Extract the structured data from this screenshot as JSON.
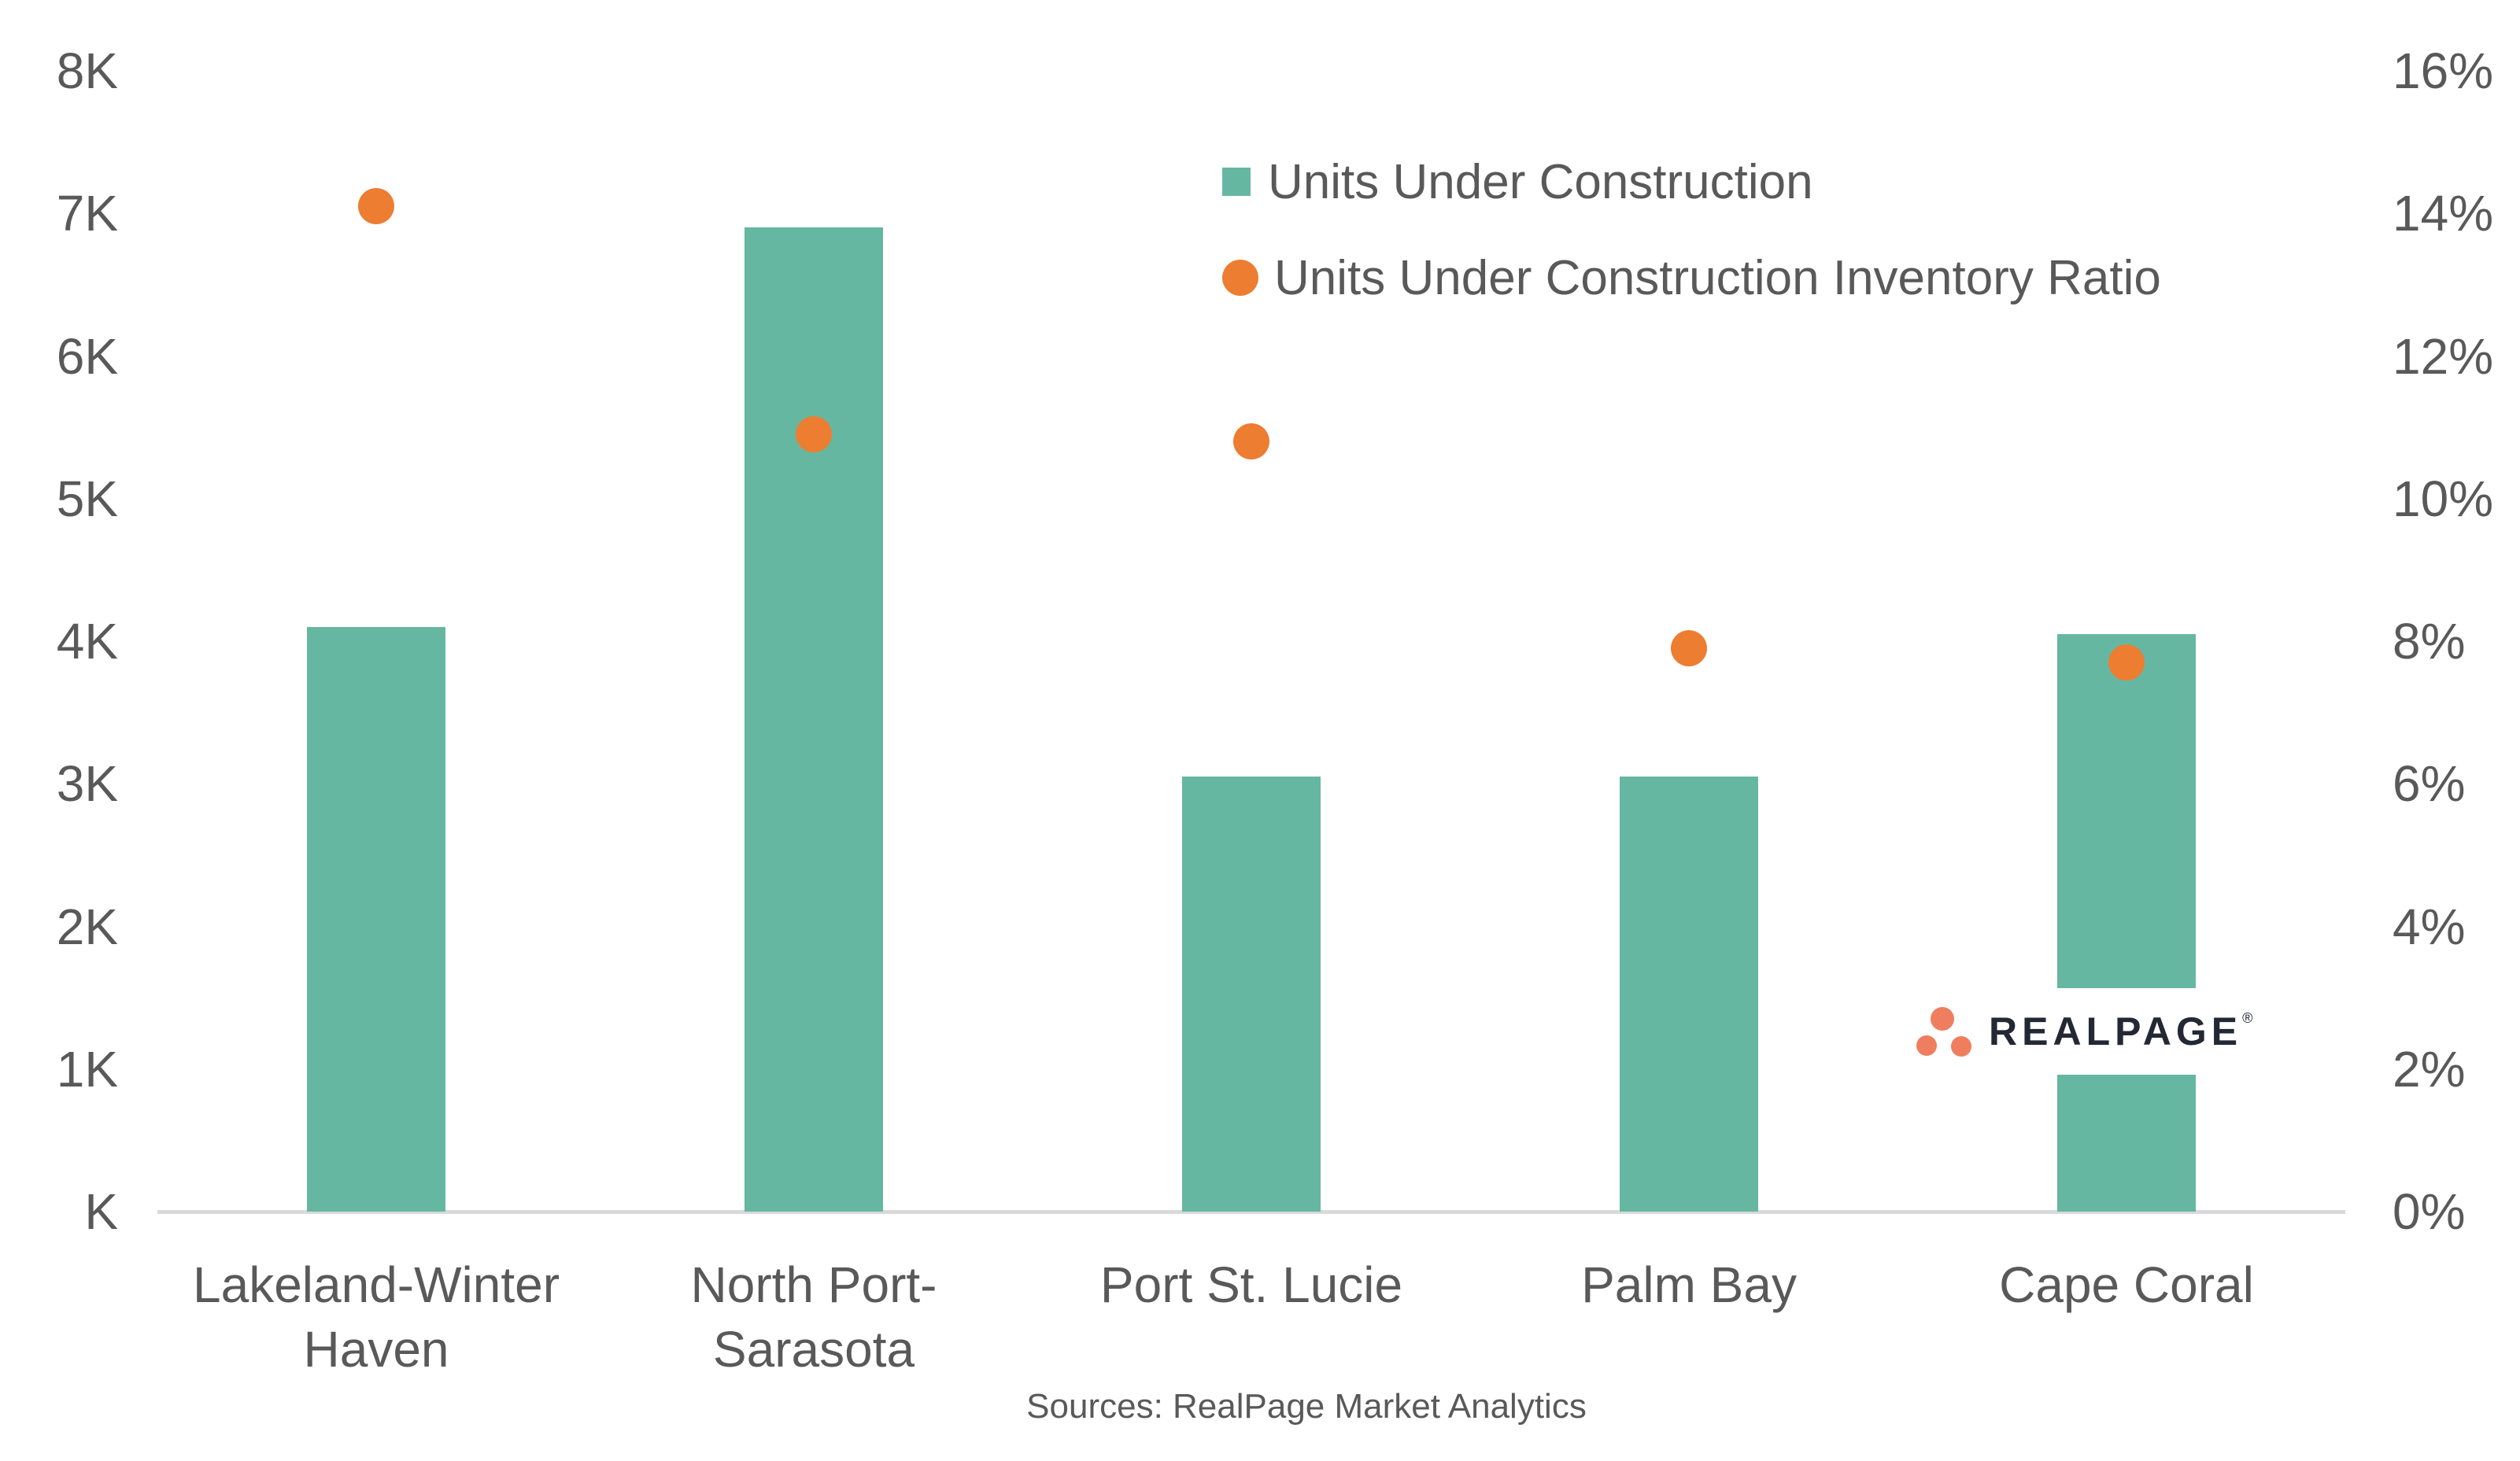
{
  "chart_data": {
    "type": "combo",
    "subtypes": [
      "bar",
      "scatter"
    ],
    "categories": [
      "Lakeland-Winter Haven",
      "North Port-Sarasota",
      "Port St. Lucie",
      "Palm Bay",
      "Cape Coral"
    ],
    "series": [
      {
        "name": "Units Under Construction",
        "type": "bar",
        "axis": "left",
        "values": [
          4100,
          6900,
          3050,
          3050,
          4050
        ]
      },
      {
        "name": "Units Under Construction Inventory Ratio",
        "type": "scatter",
        "axis": "right",
        "values": [
          14.1,
          10.9,
          10.8,
          7.9,
          7.7
        ]
      }
    ],
    "left_axis": {
      "min": 0,
      "max": 8000,
      "ticks": [
        {
          "label": "8K",
          "value": 8000
        },
        {
          "label": "7K",
          "value": 7000
        },
        {
          "label": "6K",
          "value": 6000
        },
        {
          "label": "5K",
          "value": 5000
        },
        {
          "label": "4K",
          "value": 4000
        },
        {
          "label": "3K",
          "value": 3000
        },
        {
          "label": "2K",
          "value": 2000
        },
        {
          "label": "1K",
          "value": 1000
        },
        {
          "label": "K",
          "value": 0
        }
      ]
    },
    "right_axis": {
      "min": 0,
      "max": 16,
      "ticks": [
        {
          "label": "16%",
          "value": 16
        },
        {
          "label": "14%",
          "value": 14
        },
        {
          "label": "12%",
          "value": 12
        },
        {
          "label": "10%",
          "value": 10
        },
        {
          "label": "8%",
          "value": 8
        },
        {
          "label": "6%",
          "value": 6
        },
        {
          "label": "4%",
          "value": 4
        },
        {
          "label": "2%",
          "value": 2
        },
        {
          "label": "0%",
          "value": 0
        }
      ]
    },
    "grid": "off",
    "legend_position": "top-center"
  },
  "colors": {
    "bar": "#66B7A1",
    "dot": "#ED7D31",
    "axis_text": "#595959",
    "baseline": "#D9D9D9",
    "logo_dots": "#EF7E5F",
    "logo_text": "#222834"
  },
  "legend": {
    "items": [
      {
        "label": "Units Under Construction",
        "marker": "square"
      },
      {
        "label": "Units Under Construction Inventory Ratio",
        "marker": "circle"
      }
    ]
  },
  "source_note": "Sources: RealPage Market Analytics",
  "logo": {
    "text": "REALPAGE",
    "trademark": "®"
  }
}
